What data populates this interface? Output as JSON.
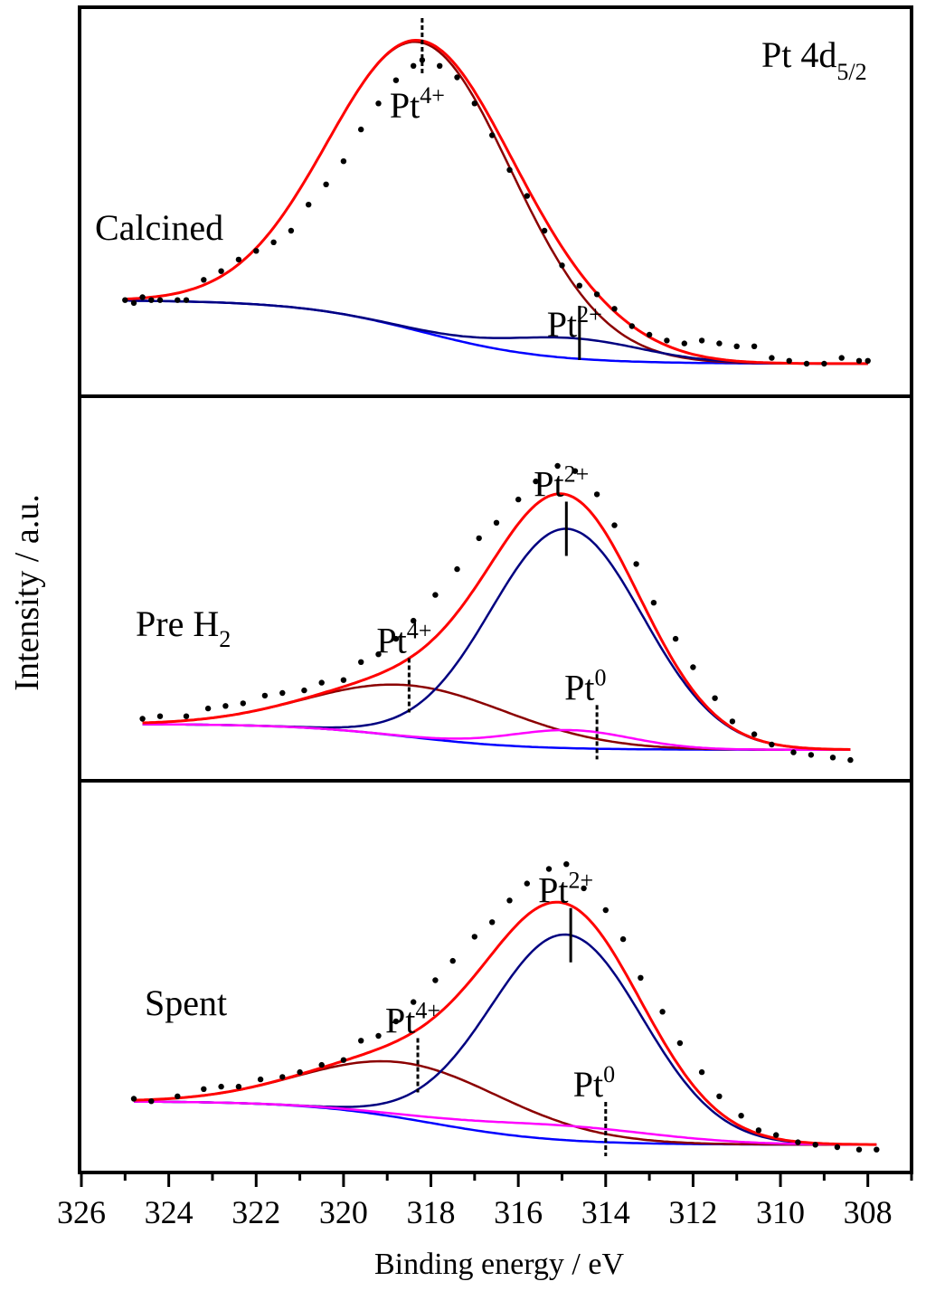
{
  "chart_data": {
    "type": "line",
    "xlabel": "Binding energy / eV",
    "ylabel": "Intensity / a.u.",
    "xlim": [
      326,
      307
    ],
    "x_reversed": true,
    "xticks": [
      326,
      324,
      322,
      320,
      318,
      316,
      314,
      312,
      310,
      308
    ],
    "grid": false,
    "colors": {
      "envelope": "#ff0000",
      "pt4": "#8b0000",
      "pt2": "#000080",
      "pt0": "#ff00ff",
      "background": "#0000ff",
      "points": "#000000"
    },
    "panels": [
      {
        "id": "calcined",
        "sample_label": "Calcined",
        "region_label": {
          "main": "Pt 4d",
          "sub": "5/2"
        },
        "ylim": [
          -0.05,
          1.17
        ],
        "background": {
          "left": 0.22,
          "right": 0.0,
          "center": 318.2,
          "width": 3.2
        },
        "components": [
          {
            "state": "Pt4+",
            "center": 318.2,
            "amplitude": 1.0,
            "sigma": 2.1
          },
          {
            "state": "Pt2+",
            "center": 314.7,
            "amplitude": 0.07,
            "sigma": 1.6
          }
        ],
        "markers": [
          {
            "label": "Pt",
            "sup": "4+",
            "x": 318.2,
            "dashed": true,
            "label_side": "below"
          },
          {
            "label": "Pt",
            "sup": "2+",
            "x": 314.6,
            "dashed": false,
            "label_side": "above"
          }
        ],
        "points": [
          [
            325.0,
            0.22
          ],
          [
            324.8,
            0.21
          ],
          [
            324.6,
            0.23
          ],
          [
            324.4,
            0.22
          ],
          [
            324.2,
            0.22
          ],
          [
            323.8,
            0.22
          ],
          [
            323.6,
            0.22
          ],
          [
            323.2,
            0.29
          ],
          [
            322.8,
            0.32
          ],
          [
            322.4,
            0.36
          ],
          [
            322.0,
            0.39
          ],
          [
            321.6,
            0.42
          ],
          [
            321.2,
            0.46
          ],
          [
            320.8,
            0.55
          ],
          [
            320.4,
            0.62
          ],
          [
            320.0,
            0.7
          ],
          [
            319.6,
            0.81
          ],
          [
            319.2,
            0.9
          ],
          [
            318.8,
            0.98
          ],
          [
            318.4,
            1.03
          ],
          [
            318.2,
            1.05
          ],
          [
            317.8,
            1.03
          ],
          [
            317.4,
            0.99
          ],
          [
            317.0,
            0.9
          ],
          [
            316.6,
            0.79
          ],
          [
            316.2,
            0.67
          ],
          [
            315.8,
            0.58
          ],
          [
            315.4,
            0.46
          ],
          [
            315.0,
            0.34
          ],
          [
            314.6,
            0.27
          ],
          [
            314.2,
            0.24
          ],
          [
            313.8,
            0.19
          ],
          [
            313.4,
            0.13
          ],
          [
            313.0,
            0.1
          ],
          [
            312.6,
            0.08
          ],
          [
            312.2,
            0.07
          ],
          [
            311.8,
            0.08
          ],
          [
            311.4,
            0.07
          ],
          [
            311.0,
            0.06
          ],
          [
            310.6,
            0.06
          ],
          [
            310.2,
            0.02
          ],
          [
            309.8,
            0.01
          ],
          [
            309.4,
            0.0
          ],
          [
            309.0,
            0.0
          ],
          [
            308.6,
            0.02
          ],
          [
            308.2,
            0.01
          ],
          [
            308.0,
            0.01
          ]
        ]
      },
      {
        "id": "pre-h2",
        "sample_label": "Pre H",
        "sample_sub": "2",
        "region_label": null,
        "ylim": [
          -0.15,
          1.2
        ],
        "background": {
          "left": 0.0,
          "right": -0.1,
          "center": 318.5,
          "width": 3.0
        },
        "components": [
          {
            "state": "Pt4+",
            "center": 318.4,
            "amplitude": 0.2,
            "sigma": 2.3
          },
          {
            "state": "Pt2+",
            "center": 314.9,
            "amplitude": 0.85,
            "sigma": 1.75
          },
          {
            "state": "Pt0",
            "center": 314.8,
            "amplitude": 0.07,
            "sigma": 1.4
          }
        ],
        "markers": [
          {
            "label": "Pt",
            "sup": "4+",
            "x": 318.5,
            "dashed": true,
            "label_side": "above"
          },
          {
            "label": "Pt",
            "sup": "2+",
            "x": 314.9,
            "dashed": false,
            "label_side": "above"
          },
          {
            "label": "Pt",
            "sup": "0",
            "x": 314.2,
            "dashed": true,
            "label_side": "above"
          }
        ],
        "points": [
          [
            324.6,
            0.02
          ],
          [
            324.2,
            0.03
          ],
          [
            323.6,
            0.03
          ],
          [
            323.1,
            0.06
          ],
          [
            322.7,
            0.07
          ],
          [
            322.3,
            0.08
          ],
          [
            321.8,
            0.11
          ],
          [
            321.4,
            0.12
          ],
          [
            320.9,
            0.13
          ],
          [
            320.5,
            0.16
          ],
          [
            320.0,
            0.17
          ],
          [
            319.6,
            0.24
          ],
          [
            319.2,
            0.27
          ],
          [
            318.8,
            0.33
          ],
          [
            318.4,
            0.4
          ],
          [
            317.9,
            0.5
          ],
          [
            317.4,
            0.6
          ],
          [
            316.9,
            0.72
          ],
          [
            316.5,
            0.78
          ],
          [
            316.0,
            0.87
          ],
          [
            315.6,
            0.94
          ],
          [
            315.1,
            1.0
          ],
          [
            314.7,
            0.98
          ],
          [
            314.2,
            0.89
          ],
          [
            313.8,
            0.77
          ],
          [
            313.3,
            0.62
          ],
          [
            312.9,
            0.47
          ],
          [
            312.4,
            0.33
          ],
          [
            312.0,
            0.22
          ],
          [
            311.5,
            0.1
          ],
          [
            311.1,
            0.01
          ],
          [
            310.6,
            -0.04
          ],
          [
            310.2,
            -0.08
          ],
          [
            309.7,
            -0.11
          ],
          [
            309.3,
            -0.12
          ],
          [
            308.8,
            -0.13
          ],
          [
            308.4,
            -0.14
          ]
        ]
      },
      {
        "id": "spent",
        "sample_label": "Spent",
        "region_label": null,
        "ylim": [
          -0.22,
          1.25
        ],
        "background": {
          "left": 0.0,
          "right": -0.18,
          "center": 318.0,
          "width": 3.2
        },
        "components": [
          {
            "state": "Pt4+",
            "center": 318.5,
            "amplitude": 0.23,
            "sigma": 2.3
          },
          {
            "state": "Pt2+",
            "center": 314.9,
            "amplitude": 0.85,
            "sigma": 1.75
          },
          {
            "state": "Pt0",
            "center": 315.0,
            "amplitude": 0.06,
            "sigma": 2.2
          }
        ],
        "markers": [
          {
            "label": "Pt",
            "sup": "4+",
            "x": 318.3,
            "dashed": true,
            "label_side": "above"
          },
          {
            "label": "Pt",
            "sup": "2+",
            "x": 314.8,
            "dashed": false,
            "label_side": "above"
          },
          {
            "label": "Pt",
            "sup": "0",
            "x": 314.0,
            "dashed": true,
            "label_side": "above"
          }
        ],
        "points": [
          [
            324.8,
            0.01
          ],
          [
            324.4,
            0.0
          ],
          [
            323.8,
            0.02
          ],
          [
            323.2,
            0.05
          ],
          [
            322.8,
            0.06
          ],
          [
            322.4,
            0.06
          ],
          [
            321.9,
            0.09
          ],
          [
            321.4,
            0.1
          ],
          [
            321.0,
            0.12
          ],
          [
            320.5,
            0.15
          ],
          [
            320.0,
            0.17
          ],
          [
            319.6,
            0.25
          ],
          [
            319.2,
            0.27
          ],
          [
            318.8,
            0.33
          ],
          [
            318.4,
            0.41
          ],
          [
            317.9,
            0.5
          ],
          [
            317.5,
            0.58
          ],
          [
            317.0,
            0.68
          ],
          [
            316.6,
            0.74
          ],
          [
            316.2,
            0.83
          ],
          [
            315.8,
            0.9
          ],
          [
            315.3,
            0.96
          ],
          [
            314.9,
            0.98
          ],
          [
            314.5,
            0.88
          ],
          [
            314.0,
            0.79
          ],
          [
            313.6,
            0.67
          ],
          [
            313.2,
            0.51
          ],
          [
            312.7,
            0.37
          ],
          [
            312.3,
            0.24
          ],
          [
            311.8,
            0.12
          ],
          [
            311.4,
            0.02
          ],
          [
            310.9,
            -0.06
          ],
          [
            310.5,
            -0.12
          ],
          [
            310.1,
            -0.14
          ],
          [
            309.6,
            -0.17
          ],
          [
            309.2,
            -0.18
          ],
          [
            308.7,
            -0.19
          ],
          [
            308.2,
            -0.2
          ],
          [
            307.8,
            -0.2
          ]
        ]
      }
    ]
  }
}
